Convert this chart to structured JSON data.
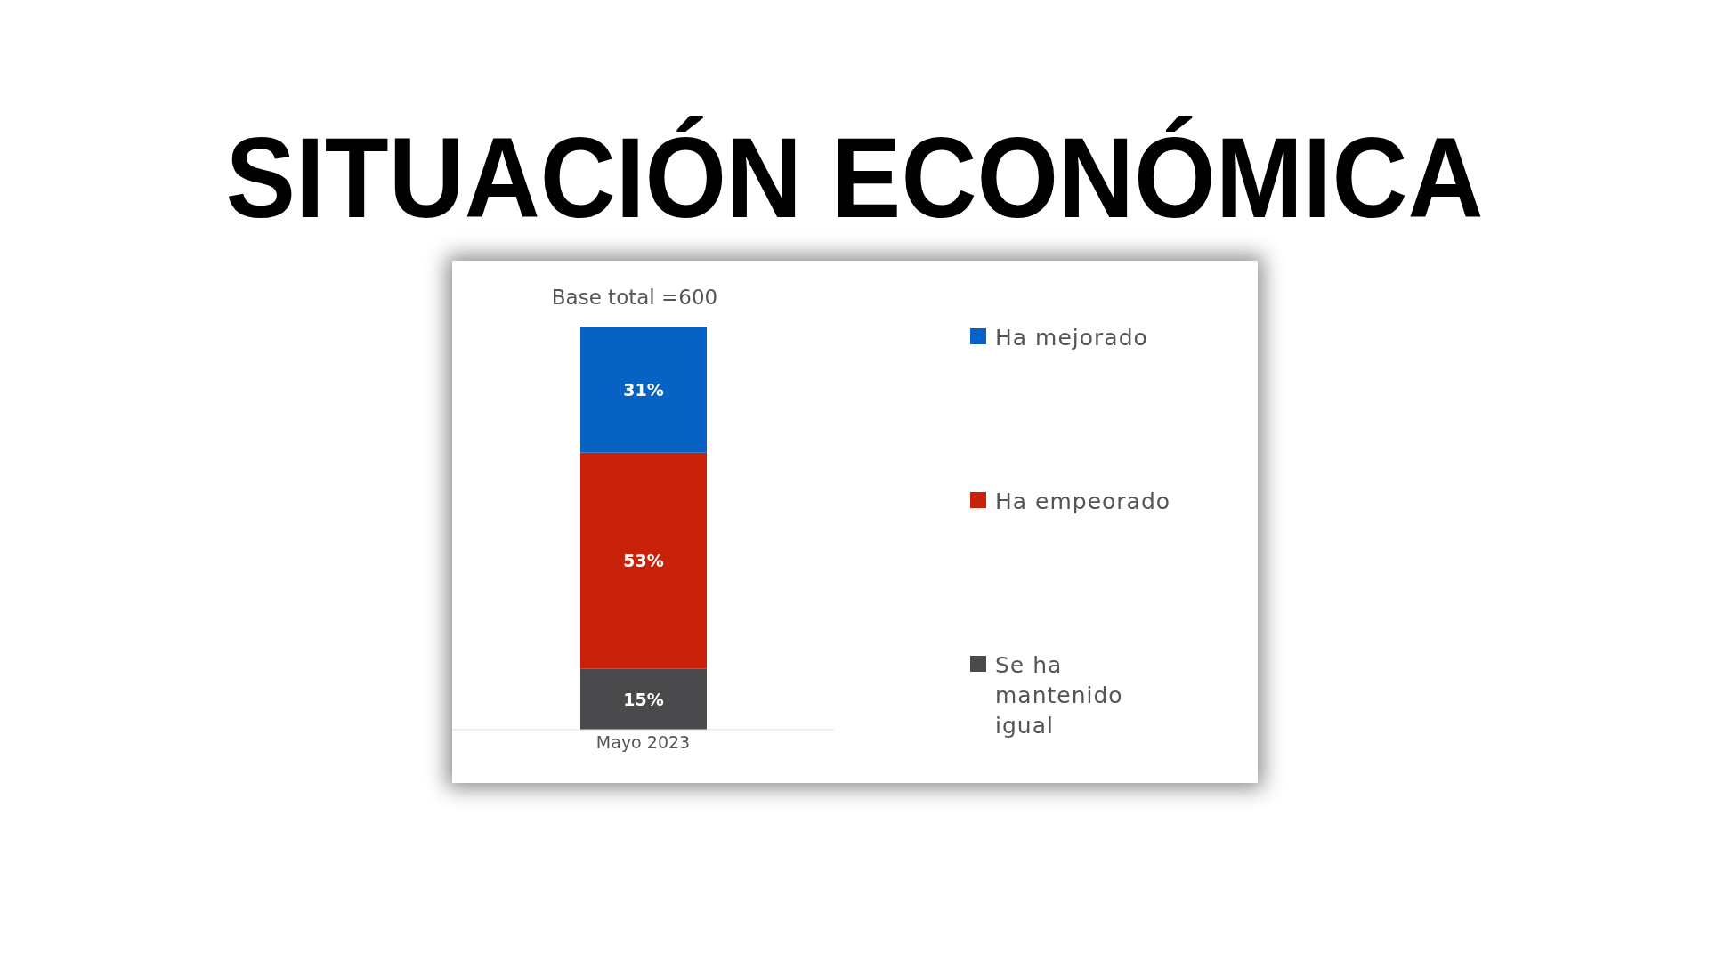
{
  "chart_data": {
    "type": "bar",
    "title": "SITUACIÓN ECONÓMICA",
    "annotations": [
      "Base total =600"
    ],
    "categories": [
      "Mayo 2023"
    ],
    "stacked": true,
    "legend": "right",
    "series": [
      {
        "name": "Se ha mantenido igual",
        "color": "#4a4a4c",
        "values": [
          15
        ],
        "value_labels": [
          "15%"
        ]
      },
      {
        "name": "Ha empeorado",
        "color": "#c8220a",
        "values": [
          53
        ],
        "value_labels": [
          "53%"
        ]
      },
      {
        "name": "Ha mejorado",
        "color": "#0762c4",
        "values": [
          31
        ],
        "value_labels": [
          "31%"
        ]
      }
    ]
  }
}
